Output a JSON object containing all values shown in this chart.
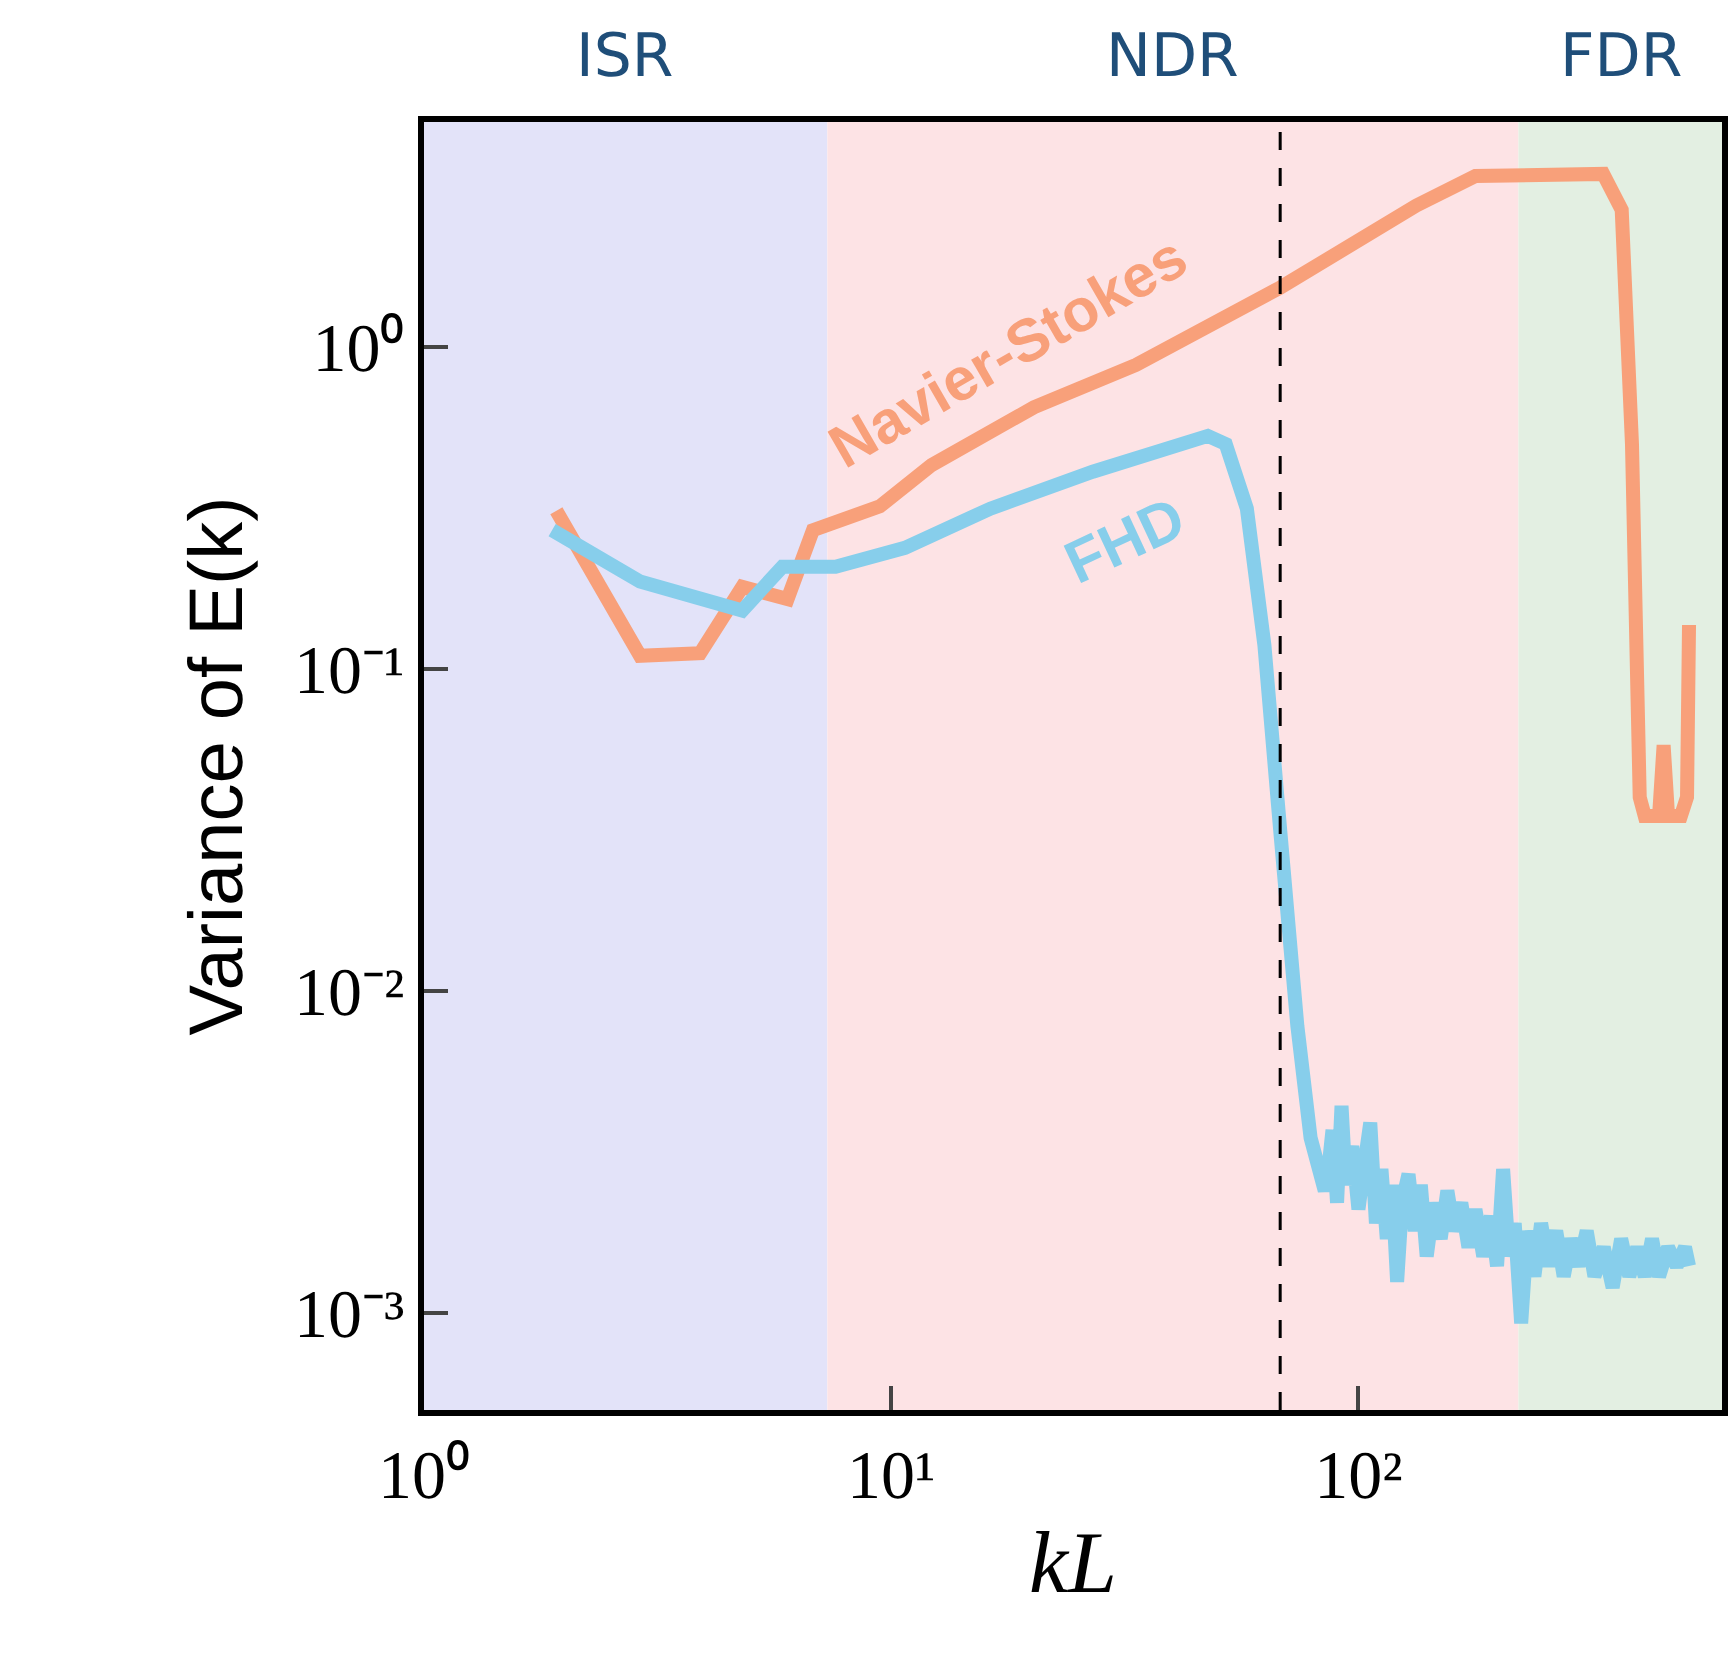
{
  "chart_data": {
    "type": "line",
    "xlabel": "kL",
    "ylabel": "Variance of E(k)",
    "log": "xy",
    "grid": false,
    "legend": false,
    "xlim": [
      1,
      600
    ],
    "ylim": [
      0.0005,
      5
    ],
    "xticks": [
      {
        "value": 1,
        "label": "10⁰"
      },
      {
        "value": 10,
        "label": "10¹"
      },
      {
        "value": 100,
        "label": "10²"
      }
    ],
    "yticks": [
      {
        "value": 0.001,
        "label": "10⁻³"
      },
      {
        "value": 0.01,
        "label": "10⁻²"
      },
      {
        "value": 0.1,
        "label": "10⁻¹"
      },
      {
        "value": 1,
        "label": "10⁰"
      }
    ],
    "bands": [
      {
        "axis": "x",
        "from": 1,
        "to": 7.3,
        "label": "ISR",
        "color": "#e3e3f9"
      },
      {
        "axis": "x",
        "from": 7.3,
        "to": 220,
        "label": "NDR",
        "color": "#fde3e5"
      },
      {
        "axis": "x",
        "from": 220,
        "to": 600,
        "label": "FDR",
        "color": "#e3efe2"
      }
    ],
    "ref_lines": [
      {
        "axis": "x",
        "value": 68,
        "color": "#000000",
        "line_style": "dashed"
      }
    ],
    "series": [
      {
        "name": "Navier-Stokes",
        "color": "#f8a07a",
        "x": [
          1.92,
          2.9,
          3.9,
          4.8,
          6.0,
          6.8,
          9.45,
          12.2,
          20.2,
          33.4,
          68,
          133,
          178,
          334,
          366,
          385,
          400,
          410,
          440,
          450,
          460,
          490,
          505,
          510
        ],
        "values": [
          0.31,
          0.11,
          0.112,
          0.18,
          0.165,
          0.27,
          0.32,
          0.43,
          0.65,
          0.88,
          1.53,
          2.75,
          3.4,
          3.45,
          2.67,
          0.5,
          0.04,
          0.035,
          0.035,
          0.058,
          0.035,
          0.035,
          0.04,
          0.137
        ]
      },
      {
        "name": "FHD",
        "color": "#87ceeb",
        "x": [
          1.88,
          2.9,
          4.8,
          5.85,
          7.6,
          10.7,
          16.3,
          27,
          47.6,
          52,
          57.7,
          62.9,
          68,
          74,
          79,
          84.7,
          86,
          88,
          90,
          92,
          94,
          97,
          100,
          103,
          106,
          109,
          112,
          115,
          118,
          121,
          124,
          128,
          132,
          136,
          140,
          145,
          150,
          155,
          160,
          166,
          172,
          178,
          185,
          192,
          198,
          204,
          210,
          216,
          223,
          230,
          238,
          246,
          255,
          265,
          275,
          285,
          296,
          308,
          320,
          335,
          350,
          365,
          380,
          395,
          410,
          425,
          440,
          460,
          480,
          500,
          510
        ],
        "values": [
          0.27,
          0.187,
          0.152,
          0.208,
          0.208,
          0.238,
          0.315,
          0.41,
          0.53,
          0.5,
          0.315,
          0.119,
          0.0316,
          0.0078,
          0.0035,
          0.0024,
          0.0027,
          0.0037,
          0.0022,
          0.0044,
          0.0025,
          0.0033,
          0.0021,
          0.0029,
          0.0039,
          0.0019,
          0.0028,
          0.0017,
          0.0025,
          0.00125,
          0.0022,
          0.0027,
          0.0018,
          0.0025,
          0.0015,
          0.0022,
          0.0017,
          0.0024,
          0.0018,
          0.0022,
          0.0016,
          0.0021,
          0.0015,
          0.002,
          0.0014,
          0.0028,
          0.0015,
          0.0019,
          0.00093,
          0.0018,
          0.0013,
          0.0019,
          0.0014,
          0.0018,
          0.0013,
          0.0017,
          0.0014,
          0.0018,
          0.0013,
          0.0016,
          0.0012,
          0.0017,
          0.0013,
          0.0016,
          0.0013,
          0.0017,
          0.0013,
          0.0016,
          0.0014,
          0.0016,
          0.0014
        ]
      }
    ],
    "line_style": "solid",
    "marker": "none"
  }
}
